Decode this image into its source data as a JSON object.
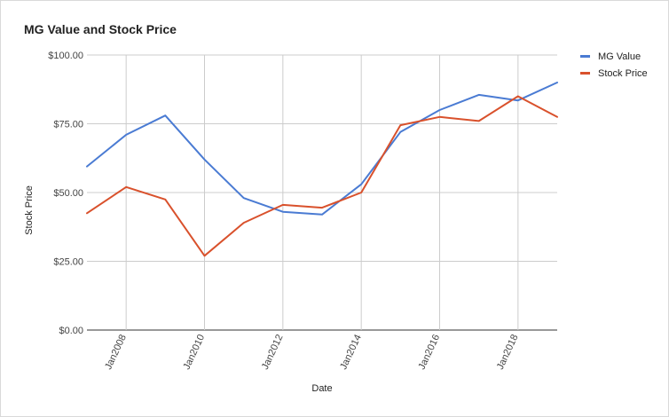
{
  "title": "MG Value and Stock Price",
  "chart_data": {
    "type": "line",
    "title": "MG Value and Stock Price",
    "xlabel": "Date",
    "ylabel": "Stock Price",
    "x": [
      2007,
      2008,
      2009,
      2010,
      2011,
      2012,
      2013,
      2014,
      2015,
      2016,
      2017,
      2018,
      2019
    ],
    "xlim": [
      2007,
      2019
    ],
    "ylim": [
      0,
      100
    ],
    "y_ticks": [
      {
        "value": 0,
        "label": "$0.00"
      },
      {
        "value": 25,
        "label": "$25.00"
      },
      {
        "value": 50,
        "label": "$50.00"
      },
      {
        "value": 75,
        "label": "$75.00"
      },
      {
        "value": 100,
        "label": "$100.00"
      }
    ],
    "x_ticks": [
      {
        "value": 2008,
        "label": "Jan2008"
      },
      {
        "value": 2010,
        "label": "Jan2010"
      },
      {
        "value": 2012,
        "label": "Jan2012"
      },
      {
        "value": 2014,
        "label": "Jan2014"
      },
      {
        "value": 2016,
        "label": "Jan2016"
      },
      {
        "value": 2018,
        "label": "Jan2018"
      }
    ],
    "series": [
      {
        "name": "MG Value",
        "color": "#4a7bd3",
        "values": [
          59.5,
          71,
          78,
          62,
          48,
          43,
          42,
          53,
          72,
          80,
          85.5,
          83.5,
          90
        ]
      },
      {
        "name": "Stock Price",
        "color": "#d9512c",
        "values": [
          42.5,
          52,
          47.5,
          27,
          39,
          45.5,
          44.5,
          50,
          74.5,
          77.5,
          76,
          85,
          77.5
        ]
      }
    ],
    "grid": true,
    "legend_position": "top-right"
  }
}
